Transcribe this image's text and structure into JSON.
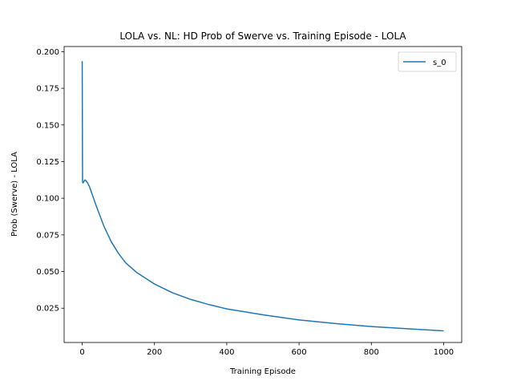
{
  "chart_data": {
    "type": "line",
    "title": "LOLA vs. NL: HD Prob of Swerve vs. Training Episode - LOLA",
    "xlabel": "Training Episode",
    "ylabel": "Prob (Swerve) - LOLA",
    "xlim": [
      -50,
      1050
    ],
    "ylim": [
      0.0016,
      0.2035
    ],
    "x_ticks": [
      0,
      200,
      400,
      600,
      800,
      1000
    ],
    "x_tick_labels": [
      "0",
      "200",
      "400",
      "600",
      "800",
      "1000"
    ],
    "y_ticks": [
      0.025,
      0.05,
      0.075,
      0.1,
      0.125,
      0.15,
      0.175,
      0.2
    ],
    "y_tick_labels": [
      "0.025",
      "0.050",
      "0.075",
      "0.100",
      "0.125",
      "0.150",
      "0.175",
      "0.200"
    ],
    "grid": false,
    "legend_position": "upper right",
    "series": [
      {
        "name": "s_0",
        "color": "#1f77b4",
        "x": [
          0,
          1,
          2,
          4,
          6,
          8,
          10,
          15,
          20,
          30,
          40,
          50,
          60,
          80,
          100,
          120,
          150,
          200,
          250,
          300,
          350,
          400,
          450,
          500,
          600,
          700,
          800,
          900,
          1000
        ],
        "y": [
          0.1935,
          0.111,
          0.1105,
          0.111,
          0.112,
          0.1125,
          0.112,
          0.1105,
          0.108,
          0.101,
          0.094,
          0.0875,
          0.081,
          0.0705,
          0.0625,
          0.056,
          0.0495,
          0.0415,
          0.0355,
          0.031,
          0.0275,
          0.0245,
          0.0225,
          0.0205,
          0.017,
          0.0145,
          0.0125,
          0.011,
          0.0095
        ]
      }
    ]
  }
}
